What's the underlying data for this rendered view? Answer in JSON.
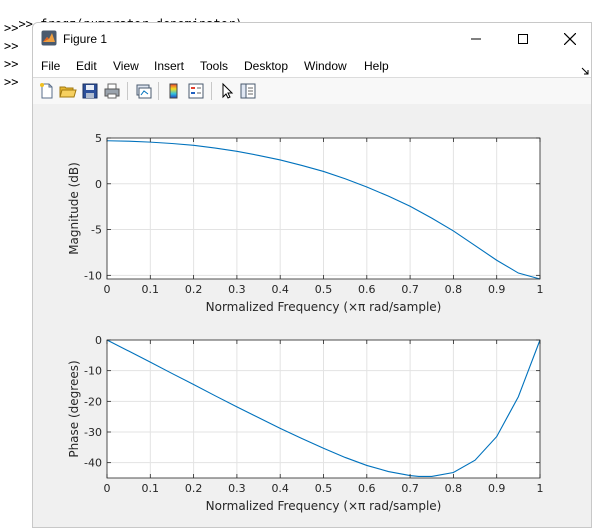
{
  "console": {
    "prompt": ">>",
    "command": "freqz(numerator,denominator)",
    "empty_prompts": [
      ">>",
      ">>",
      ">>",
      ">>"
    ]
  },
  "window": {
    "title": "Figure 1",
    "controls": [
      "minimize-icon",
      "maximize-icon",
      "close-icon"
    ]
  },
  "menu": {
    "items": [
      "File",
      "Edit",
      "View",
      "Insert",
      "Tools",
      "Desktop",
      "Window",
      "Help"
    ]
  },
  "toolbar": {
    "buttons": [
      "new-figure-icon",
      "open-file-icon",
      "save-icon",
      "print-icon",
      "link-plot-icon",
      "colorbar-icon",
      "legend-icon",
      "pointer-icon",
      "property-inspector-icon"
    ]
  },
  "chart_data": [
    {
      "type": "line",
      "title": "",
      "xlabel": "Normalized Frequency  (×π rad/sample)",
      "ylabel": "Magnitude (dB)",
      "xlim": [
        0,
        1
      ],
      "ylim": [
        -10.4,
        5
      ],
      "xticks": [
        "0",
        "0.1",
        "0.2",
        "0.3",
        "0.4",
        "0.5",
        "0.6",
        "0.7",
        "0.8",
        "0.9",
        "1"
      ],
      "yticks": [
        5,
        0,
        -5,
        -10
      ],
      "ytick_labels": [
        "5",
        "0",
        "-5",
        "-10"
      ],
      "grid": true,
      "color": "#0072bd",
      "x": [
        0,
        0.05,
        0.1,
        0.15,
        0.2,
        0.25,
        0.3,
        0.35,
        0.4,
        0.45,
        0.5,
        0.55,
        0.6,
        0.65,
        0.7,
        0.75,
        0.8,
        0.85,
        0.9,
        0.95,
        1.0
      ],
      "y": [
        4.7,
        4.65,
        4.55,
        4.4,
        4.2,
        3.9,
        3.55,
        3.1,
        2.6,
        2.0,
        1.35,
        0.55,
        -0.35,
        -1.35,
        -2.45,
        -3.75,
        -5.15,
        -6.75,
        -8.35,
        -9.75,
        -10.4
      ]
    },
    {
      "type": "line",
      "title": "",
      "xlabel": "Normalized Frequency  (×π rad/sample)",
      "ylabel": "Phase (degrees)",
      "xlim": [
        0,
        1
      ],
      "ylim": [
        -45,
        0
      ],
      "xticks": [
        "0",
        "0.1",
        "0.2",
        "0.3",
        "0.4",
        "0.5",
        "0.6",
        "0.7",
        "0.8",
        "0.9",
        "1"
      ],
      "yticks": [
        0,
        -10,
        -20,
        -30,
        -40
      ],
      "ytick_labels": [
        "0",
        "-10",
        "-20",
        "-30",
        "-40"
      ],
      "grid": true,
      "color": "#0072bd",
      "x": [
        0,
        0.05,
        0.1,
        0.15,
        0.2,
        0.25,
        0.3,
        0.35,
        0.4,
        0.45,
        0.5,
        0.55,
        0.6,
        0.65,
        0.7,
        0.72,
        0.75,
        0.8,
        0.85,
        0.9,
        0.95,
        1.0
      ],
      "y": [
        0,
        -3.6,
        -7.2,
        -10.9,
        -14.5,
        -18.2,
        -21.8,
        -25.3,
        -28.8,
        -32.1,
        -35.3,
        -38.3,
        -40.9,
        -42.9,
        -44.2,
        -44.5,
        -44.5,
        -43.2,
        -39.2,
        -31.5,
        -18.5,
        0
      ]
    }
  ]
}
